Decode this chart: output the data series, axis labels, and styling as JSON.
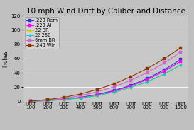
{
  "title": "10 mph Wind Drift by Caliber and Distance",
  "ylabel": "Inches",
  "x_labels": [
    "Drift\n100",
    "Drift\n200",
    "Drift\n300",
    "Drift\n400",
    "Drift\n500",
    "Drift\n600",
    "Drift\n700",
    "Drift\n800",
    "Drift\n900",
    "Drift\n1000"
  ],
  "x_values": [
    100,
    200,
    300,
    400,
    500,
    600,
    700,
    800,
    900,
    1000
  ],
  "series": [
    {
      "label": ".223 Rem",
      "color": "#3333cc",
      "marker": "s",
      "markersize": 2.5,
      "linewidth": 0.8,
      "values": [
        0.3,
        1.3,
        3.0,
        5.8,
        9.8,
        15.2,
        22.5,
        32.0,
        44.0,
        58.5
      ]
    },
    {
      "label": ".223 AI",
      "color": "#ff00ff",
      "marker": "s",
      "markersize": 2.5,
      "linewidth": 0.8,
      "values": [
        0.3,
        1.2,
        2.8,
        5.4,
        9.2,
        14.5,
        21.5,
        30.5,
        42.0,
        56.0
      ]
    },
    {
      "label": "22 BR",
      "color": "#cccc00",
      "marker": "^",
      "markersize": 2.5,
      "linewidth": 0.8,
      "values": [
        0.3,
        1.1,
        2.5,
        4.8,
        8.2,
        13.0,
        19.5,
        27.5,
        38.0,
        51.0
      ]
    },
    {
      "label": "22.250",
      "color": "#00cccc",
      "marker": "D",
      "markersize": 2.0,
      "linewidth": 0.8,
      "values": [
        0.3,
        1.1,
        2.5,
        4.8,
        8.2,
        13.0,
        19.5,
        27.5,
        38.0,
        51.0
      ]
    },
    {
      "label": "6mm BR",
      "color": "#cc66cc",
      "marker": "s",
      "markersize": 2.5,
      "linewidth": 0.8,
      "values": [
        0.5,
        1.9,
        4.3,
        8.2,
        13.5,
        20.5,
        29.5,
        40.5,
        53.5,
        69.0
      ]
    },
    {
      "label": ".243 Win",
      "color": "#8b3300",
      "marker": "s",
      "markersize": 2.5,
      "linewidth": 0.8,
      "values": [
        0.7,
        2.6,
        5.8,
        10.5,
        16.8,
        24.5,
        34.5,
        46.0,
        59.5,
        75.0
      ]
    }
  ],
  "ylim": [
    0,
    120
  ],
  "yticks": [
    0,
    20,
    40,
    60,
    80,
    100,
    120
  ],
  "bg_color": "#c0c0c0",
  "plot_bg_color": "#c8c8c8",
  "grid_color": "#ffffff",
  "title_fontsize": 7.5,
  "label_fontsize": 5.5,
  "tick_fontsize": 5.0,
  "legend_fontsize": 4.8
}
